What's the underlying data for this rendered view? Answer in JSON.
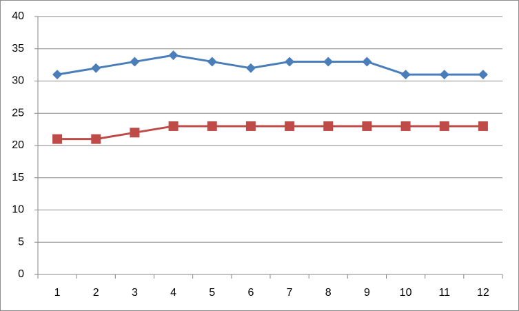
{
  "chart_data": {
    "type": "line",
    "categories": [
      1,
      2,
      3,
      4,
      5,
      6,
      7,
      8,
      9,
      10,
      11,
      12
    ],
    "series": [
      {
        "color": "#4a7ebb",
        "marker": "diamond",
        "values": [
          31,
          32,
          33,
          34,
          33,
          32,
          33,
          33,
          33,
          31,
          31,
          31
        ]
      },
      {
        "color": "#be4b48",
        "marker": "square",
        "values": [
          21,
          21,
          22,
          23,
          23,
          23,
          23,
          23,
          23,
          23,
          23,
          23
        ]
      }
    ],
    "ylim": [
      0,
      40
    ],
    "yticks": [
      0,
      5,
      10,
      15,
      20,
      25,
      30,
      35,
      40
    ],
    "grid": true
  }
}
